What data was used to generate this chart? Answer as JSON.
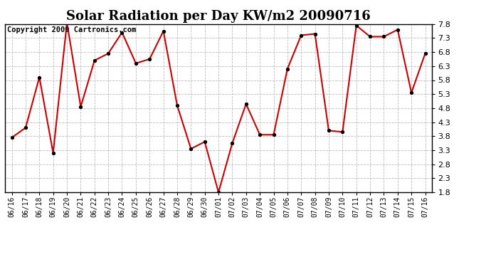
{
  "title": "Solar Radiation per Day KW/m2 20090716",
  "copyright": "Copyright 2009 Cartronics.com",
  "dates": [
    "06/16",
    "06/17",
    "06/18",
    "06/19",
    "06/20",
    "06/21",
    "06/22",
    "06/23",
    "06/24",
    "06/25",
    "06/26",
    "06/27",
    "06/28",
    "06/29",
    "06/30",
    "07/01",
    "07/02",
    "07/03",
    "07/04",
    "07/05",
    "07/06",
    "07/07",
    "07/08",
    "07/09",
    "07/10",
    "07/11",
    "07/12",
    "07/13",
    "07/14",
    "07/15",
    "07/16"
  ],
  "values": [
    3.75,
    4.1,
    5.9,
    3.2,
    7.85,
    4.85,
    6.5,
    6.75,
    7.5,
    6.4,
    6.55,
    7.55,
    4.9,
    3.35,
    3.6,
    1.8,
    3.55,
    4.95,
    3.85,
    3.85,
    6.2,
    7.4,
    7.45,
    4.0,
    3.95,
    7.75,
    7.35,
    7.35,
    7.6,
    5.35,
    6.75
  ],
  "line_color": "#cc0000",
  "marker_color": "#000000",
  "bg_color": "#ffffff",
  "plot_bg_color": "#ffffff",
  "grid_color": "#bbbbbb",
  "ylim": [
    1.8,
    7.8
  ],
  "yticks": [
    1.8,
    2.3,
    2.8,
    3.3,
    3.8,
    4.3,
    4.8,
    5.3,
    5.8,
    6.3,
    6.8,
    7.3,
    7.8
  ],
  "title_fontsize": 13,
  "copyright_fontsize": 7.5,
  "tick_fontsize": 8,
  "xtick_fontsize": 7
}
